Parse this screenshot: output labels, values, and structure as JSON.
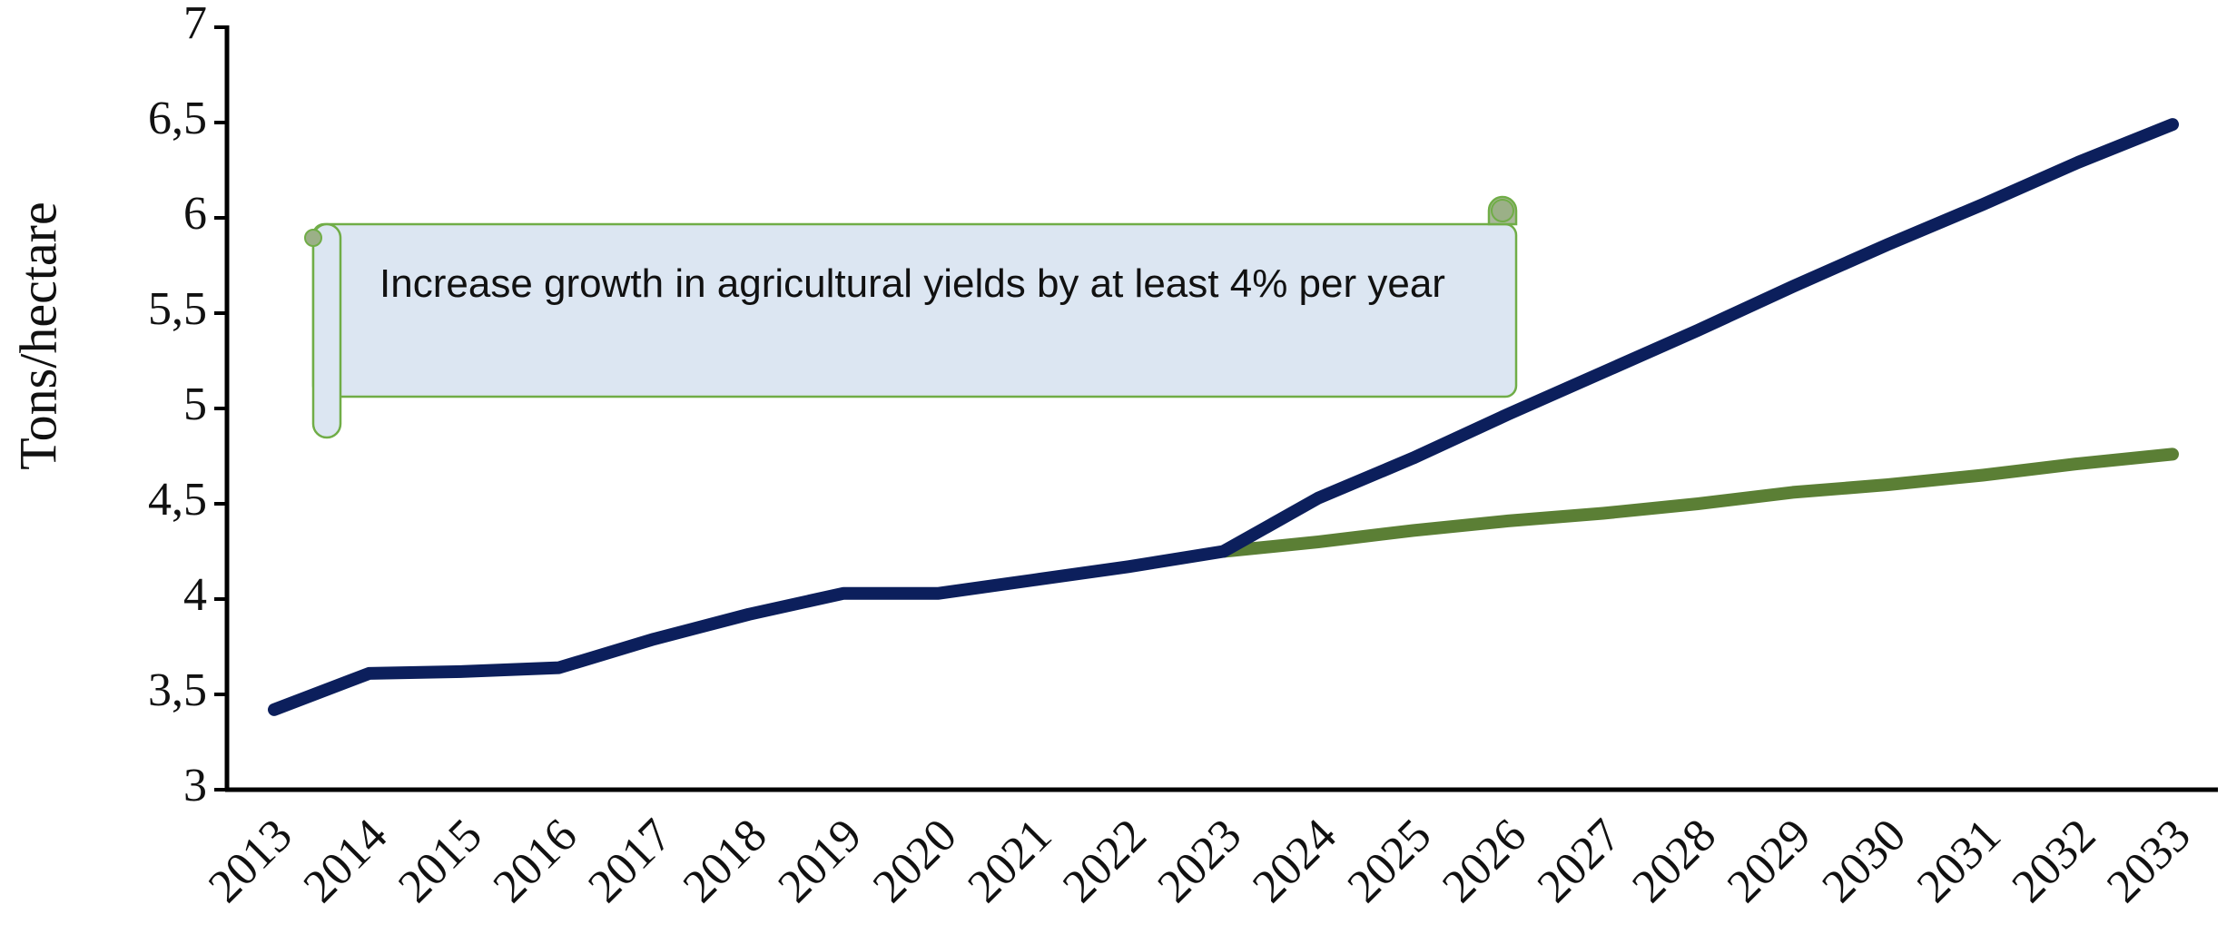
{
  "chart_data": {
    "type": "line",
    "y_label": "Tons/hectare",
    "annotation": "Increase growth in agricultural yields by at least 4% per year",
    "categories": [
      "2013",
      "2014",
      "2015",
      "2016",
      "2017",
      "2018",
      "2019",
      "2020",
      "2021",
      "2022",
      "2023",
      "2024",
      "2025",
      "2026",
      "2027",
      "2028",
      "2029",
      "2030",
      "2031",
      "2032",
      "2033"
    ],
    "series": [
      {
        "color": "#5b7f35",
        "values": [
          null,
          null,
          null,
          null,
          null,
          null,
          null,
          null,
          null,
          null,
          4.25,
          4.3,
          4.36,
          4.41,
          4.45,
          4.5,
          4.56,
          4.6,
          4.65,
          4.71,
          4.76
        ]
      },
      {
        "color": "#0c1f5c",
        "values": [
          3.42,
          3.61,
          3.62,
          3.64,
          3.79,
          3.92,
          4.03,
          4.03,
          4.1,
          4.17,
          4.25,
          4.53,
          4.74,
          4.97,
          5.19,
          5.41,
          5.64,
          5.86,
          6.07,
          6.29,
          6.49
        ]
      }
    ],
    "ylim": [
      3,
      7
    ],
    "yticks": [
      3,
      {
        "value": 3.5,
        "label": "3,5"
      },
      4,
      {
        "value": 4.5,
        "label": "4,5"
      },
      5,
      {
        "value": 5.5,
        "label": "5,5"
      },
      6,
      {
        "value": 6.5,
        "label": "6,5"
      },
      7
    ]
  }
}
